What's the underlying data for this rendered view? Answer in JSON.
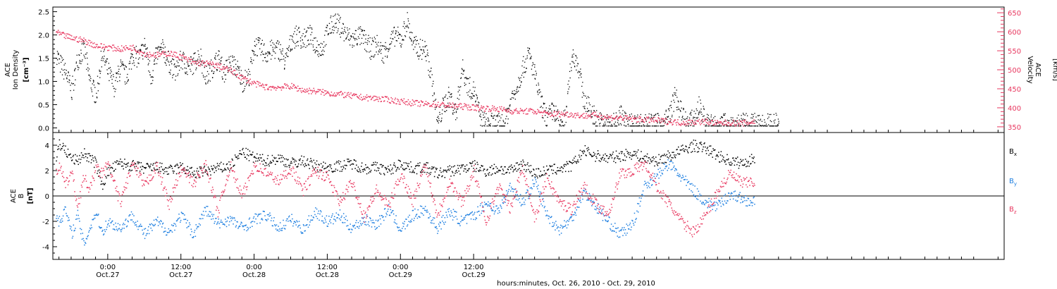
{
  "chart_data": [
    {
      "type": "scatter",
      "panel": "top",
      "ylabel_lines": [
        "ACE",
        "Ion Density"
      ],
      "ylabel_unit": "[cm⁻³]",
      "ylabel2_lines": [
        "ACE",
        "Velocity"
      ],
      "ylabel2_unit": "[km/s]",
      "ylim": [
        -0.1,
        2.6
      ],
      "y2lim": [
        335,
        665
      ],
      "yticks": [
        0.0,
        0.5,
        1.0,
        1.5,
        2.0,
        2.5
      ],
      "ytick_labels": [
        "0.0",
        "0.5",
        "1.0",
        "1.5",
        "2.0",
        "2.5"
      ],
      "y2ticks": [
        350,
        400,
        450,
        500,
        550,
        600,
        650
      ],
      "y2tick_labels": [
        "350",
        "400",
        "450",
        "500",
        "550",
        "600",
        "650"
      ],
      "colors": {
        "density": "#000000",
        "velocity": "#e8375f"
      },
      "series": [
        {
          "axis": "left",
          "x": [
            -8.5,
            -8,
            -7,
            -6,
            -5,
            -4,
            -3,
            -2,
            -1,
            0,
            1,
            2,
            3,
            4,
            5,
            6,
            7,
            8,
            9,
            10,
            11,
            12,
            13,
            14,
            15,
            16,
            17,
            18,
            19,
            20,
            21,
            22,
            23,
            24,
            25,
            26,
            27,
            28,
            29,
            30,
            31,
            32,
            33,
            34,
            35,
            36,
            37,
            38,
            39,
            40,
            41,
            42,
            43,
            44,
            45,
            46,
            47,
            48,
            49,
            50,
            51,
            52,
            53,
            54,
            55,
            56,
            57,
            58,
            59,
            60,
            61,
            62,
            63,
            64,
            65,
            66,
            67,
            68,
            69,
            70,
            71,
            72,
            73,
            74,
            75,
            76,
            77,
            78,
            79,
            80,
            81,
            82,
            83,
            84,
            85,
            86,
            87,
            88,
            89,
            90,
            91,
            92,
            93,
            94,
            95,
            96,
            97,
            98,
            99,
            100,
            101,
            102,
            103,
            104,
            105,
            106,
            107,
            108,
            109,
            110
          ],
          "y": [
            1.6,
            1.4,
            1.2,
            0.8,
            1.5,
            1.7,
            1.0,
            0.7,
            1.6,
            1.2,
            0.9,
            1.3,
            1.1,
            1.6,
            1.5,
            1.8,
            1.1,
            1.6,
            1.7,
            1.4,
            1.2,
            1.5,
            1.3,
            1.4,
            1.6,
            1.1,
            1.3,
            1.5,
            1.2,
            1.4,
            1.3,
            1.0,
            1.1,
            1.8,
            1.7,
            1.6,
            1.7,
            1.7,
            1.4,
            1.9,
            2.0,
            1.9,
            2.0,
            1.8,
            1.7,
            2.1,
            2.3,
            2.2,
            2.0,
            1.9,
            2.0,
            1.9,
            1.7,
            1.8,
            1.6,
            1.8,
            2.0,
            1.9,
            2.3,
            1.8,
            1.7,
            1.7,
            1.1,
            0.1,
            0.5,
            0.7,
            0.3,
            1.3,
            0.9,
            0.8,
            0.2,
            0.1,
            0.1,
            0.1,
            0.1,
            0.6,
            0.9,
            1.3,
            1.6,
            1.1,
            0.5,
            0.2,
            0.4,
            0.1,
            0.2,
            1.6,
            1.4,
            0.6,
            0.4,
            0.2,
            0.1,
            0.1,
            0.1,
            0.3,
            0.1,
            0.1,
            0.1,
            0.1,
            0.1,
            0.1,
            0.1,
            0.3,
            0.7,
            0.3,
            0.1,
            0.2,
            0.5,
            0.1,
            0.1,
            0.1,
            0.1,
            0.1,
            0.1,
            0.1,
            0.1,
            0.1,
            0.1,
            0.1,
            0.1,
            0.1
          ]
        },
        {
          "axis": "right",
          "x": [
            -8.5,
            -8,
            -6,
            -4,
            -2,
            0,
            2,
            4,
            6,
            8,
            10,
            12,
            14,
            16,
            18,
            20,
            22,
            24,
            26,
            28,
            30,
            32,
            34,
            36,
            38,
            40,
            42,
            44,
            46,
            48,
            50,
            52,
            54,
            56,
            58,
            60,
            62,
            64,
            66,
            68,
            70,
            72,
            74,
            76,
            78,
            80,
            82,
            84,
            86,
            88,
            90,
            92,
            94,
            96,
            98,
            100,
            102,
            104,
            106
          ],
          "y": [
            600,
            595,
            585,
            578,
            565,
            560,
            556,
            560,
            543,
            540,
            545,
            535,
            520,
            518,
            512,
            500,
            480,
            465,
            455,
            455,
            458,
            447,
            445,
            440,
            437,
            432,
            428,
            426,
            422,
            418,
            414,
            411,
            410,
            407,
            405,
            402,
            400,
            398,
            393,
            392,
            392,
            385,
            385,
            384,
            380,
            382,
            376,
            375,
            372,
            370,
            368,
            365,
            362,
            364,
            365,
            360,
            362,
            360,
            365
          ]
        }
      ]
    },
    {
      "type": "scatter",
      "panel": "bottom",
      "ylabel_lines": [
        "ACE",
        "B"
      ],
      "ylabel_unit": "[nT]",
      "ylim": [
        -5,
        5
      ],
      "yticks": [
        -4,
        -2,
        0,
        2,
        4
      ],
      "ytick_labels": [
        "-4",
        "-2",
        "0",
        "2",
        "4"
      ],
      "zero_line": true,
      "colors": {
        "Bx": "#000000",
        "By": "#1e7fe0",
        "Bz": "#e8375f"
      },
      "series": [
        {
          "name": "Bx",
          "x": [
            -8.5,
            -8,
            -7,
            -6,
            -5,
            -4,
            -3,
            -2,
            -1,
            0,
            2,
            4,
            6,
            8,
            10,
            12,
            14,
            16,
            18,
            20,
            22,
            24,
            26,
            28,
            30,
            32,
            34,
            36,
            38,
            40,
            42,
            44,
            46,
            48,
            50,
            52,
            54,
            56,
            58,
            60,
            62,
            64,
            66,
            68,
            70,
            72,
            74,
            76,
            78,
            80,
            82,
            84,
            86,
            88,
            90,
            92,
            94,
            96,
            98,
            100,
            102,
            104,
            106
          ],
          "y": [
            3.0,
            4.2,
            3.6,
            3.0,
            2.8,
            3.4,
            3.0,
            2.6,
            0.8,
            2.0,
            2.6,
            2.4,
            2.2,
            2.3,
            2.0,
            2.3,
            1.8,
            2.0,
            2.2,
            2.4,
            3.5,
            3.0,
            2.8,
            3.0,
            2.6,
            2.8,
            2.4,
            2.3,
            2.4,
            2.6,
            2.2,
            2.3,
            2.0,
            2.6,
            2.2,
            2.3,
            1.8,
            2.0,
            2.2,
            2.4,
            2.0,
            2.2,
            2.0,
            2.6,
            1.8,
            2.0,
            2.2,
            2.4,
            3.6,
            3.2,
            3.0,
            3.2,
            3.4,
            3.0,
            2.8,
            3.2,
            3.6,
            4.0,
            3.8,
            3.2,
            2.8,
            2.6,
            3.0
          ]
        },
        {
          "name": "By",
          "x": [
            -8.5,
            -8,
            -7,
            -6,
            -5,
            -4,
            -3,
            -2,
            -1,
            0,
            2,
            4,
            6,
            8,
            10,
            12,
            14,
            16,
            18,
            20,
            22,
            24,
            26,
            28,
            30,
            32,
            34,
            36,
            38,
            40,
            42,
            44,
            46,
            48,
            50,
            52,
            54,
            56,
            58,
            60,
            62,
            64,
            66,
            68,
            70,
            72,
            74,
            76,
            78,
            80,
            82,
            84,
            86,
            88,
            90,
            92,
            94,
            96,
            98,
            100,
            102,
            104,
            106
          ],
          "y": [
            -1.5,
            -2.0,
            -1.0,
            -3.0,
            -1.5,
            -3.8,
            -2.5,
            -1.2,
            -2.8,
            -2.0,
            -2.5,
            -1.5,
            -3.0,
            -2.0,
            -2.8,
            -1.5,
            -3.0,
            -1.0,
            -2.2,
            -1.8,
            -2.5,
            -1.8,
            -1.5,
            -2.5,
            -1.8,
            -2.6,
            -1.2,
            -2.0,
            -1.5,
            -2.5,
            -1.8,
            -2.2,
            -1.0,
            -2.6,
            -1.5,
            -1.0,
            -2.5,
            -1.2,
            -2.0,
            -1.5,
            -0.5,
            -1.2,
            0.8,
            -0.5,
            1.2,
            -1.5,
            -2.6,
            -1.8,
            0.4,
            -0.8,
            -2.0,
            -3.0,
            -2.2,
            0.8,
            1.6,
            2.6,
            1.5,
            0.5,
            -0.5,
            -0.8,
            0.2,
            -0.2,
            -0.5
          ]
        },
        {
          "name": "Bz",
          "x": [
            -8.5,
            -8,
            -7,
            -6,
            -5,
            -4,
            -3,
            -2,
            -1,
            0,
            2,
            4,
            6,
            8,
            10,
            12,
            14,
            16,
            18,
            20,
            22,
            24,
            26,
            28,
            30,
            32,
            34,
            36,
            38,
            40,
            42,
            44,
            46,
            48,
            50,
            52,
            54,
            56,
            58,
            60,
            62,
            64,
            66,
            68,
            70,
            72,
            74,
            76,
            78,
            80,
            82,
            84,
            86,
            88,
            90,
            92,
            94,
            96,
            98,
            100,
            102,
            104,
            106
          ],
          "y": [
            1.8,
            2.6,
            0.8,
            2.0,
            -0.8,
            1.5,
            0.5,
            2.2,
            1.8,
            2.5,
            -0.5,
            2.6,
            0.8,
            2.4,
            -0.6,
            2.2,
            1.0,
            2.5,
            -1.2,
            2.4,
            0.0,
            2.5,
            1.8,
            1.2,
            2.2,
            0.5,
            2.0,
            1.5,
            -0.5,
            1.2,
            -1.6,
            0.5,
            -0.8,
            1.8,
            -0.4,
            2.6,
            -1.5,
            1.2,
            -0.5,
            2.0,
            -2.0,
            0.8,
            -1.0,
            2.4,
            -1.8,
            1.5,
            -0.5,
            -1.0,
            0.8,
            -0.6,
            -1.4,
            1.8,
            2.0,
            2.6,
            0.8,
            -0.6,
            -2.0,
            -2.8,
            -1.5,
            0.5,
            1.8,
            1.0,
            1.2
          ]
        }
      ]
    }
  ],
  "legend": [
    {
      "label": "B",
      "sub": "x",
      "color": "#000000"
    },
    {
      "label": "B",
      "sub": "y",
      "color": "#1e7fe0"
    },
    {
      "label": "B",
      "sub": "z",
      "color": "#e8375f"
    }
  ],
  "x_axis": {
    "range_hours": [
      -9,
      147
    ],
    "ticks": [
      {
        "x": 0,
        "time": "0:00",
        "date": "Oct.27"
      },
      {
        "x": 12,
        "time": "12:00",
        "date": "Oct.27"
      },
      {
        "x": 24,
        "time": "0:00",
        "date": "Oct.28"
      },
      {
        "x": 36,
        "time": "12:00",
        "date": "Oct.28"
      },
      {
        "x": 48,
        "time": "0:00",
        "date": "Oct.29"
      },
      {
        "x": 60,
        "time": "12:00",
        "date": "Oct.29"
      }
    ],
    "label": "hours:minutes, Oct. 26, 2010 - Oct. 29, 2010"
  }
}
